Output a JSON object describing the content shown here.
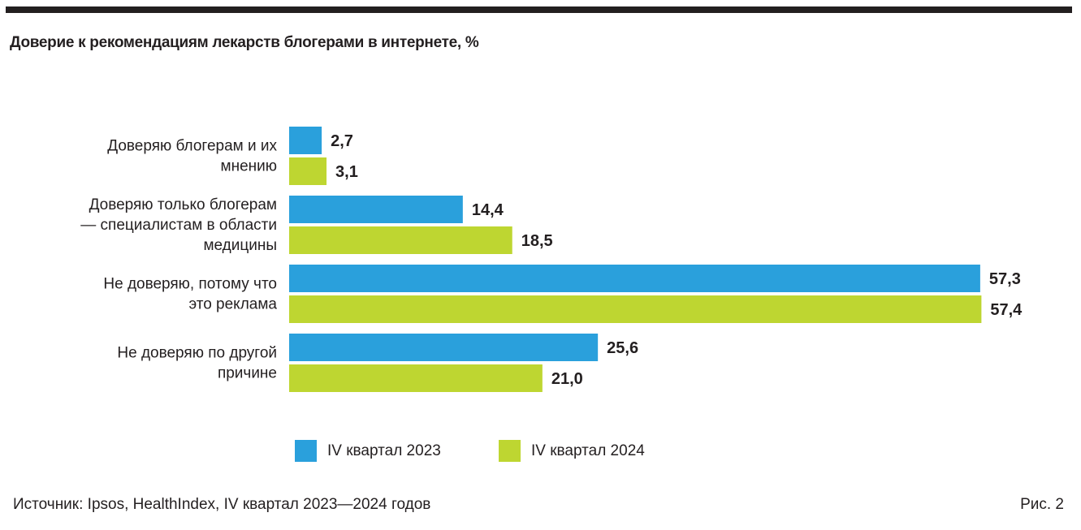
{
  "title": "Доверие к рекомендациям лекарств блогерами в интернете, %",
  "colors": {
    "series_2023": "#2AA0DC",
    "series_2024": "#BED631",
    "text": "#231F20"
  },
  "chart_data": {
    "type": "bar",
    "orientation": "horizontal",
    "title": "Доверие к рекомендациям лекарств блогерами в интернете, %",
    "xlabel": "",
    "ylabel": "",
    "xlim": [
      0,
      60
    ],
    "grid": false,
    "legend_position": "bottom",
    "categories": [
      [
        "Доверяю блогерам и их",
        "мнению"
      ],
      [
        "Доверяю только блогерам",
        "— специалистам в области",
        "медицины"
      ],
      [
        "Не доверяю, потому что",
        "это реклама"
      ],
      [
        "Не доверяю по другой",
        "причине"
      ]
    ],
    "series": [
      {
        "name": "IV квартал 2023",
        "color": "#2AA0DC",
        "values": [
          2.7,
          14.4,
          57.3,
          25.6
        ],
        "labels": [
          "2,7",
          "14,4",
          "57,3",
          "25,6"
        ]
      },
      {
        "name": "IV квартал 2024",
        "color": "#BED631",
        "values": [
          3.1,
          18.5,
          57.4,
          21.0
        ],
        "labels": [
          "3,1",
          "18,5",
          "57,4",
          "21,0"
        ]
      }
    ]
  },
  "legend": [
    {
      "label": "IV квартал 2023",
      "color": "#2AA0DC"
    },
    {
      "label": "IV квартал 2024",
      "color": "#BED631"
    }
  ],
  "footer": {
    "source": "Источник: Ipsos, HealthIndex, IV квартал 2023—2024 годов",
    "figure": "Рис. 2"
  }
}
